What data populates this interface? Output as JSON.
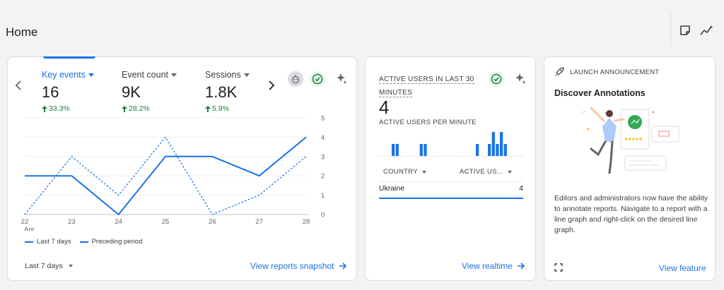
{
  "page": {
    "title": "Home"
  },
  "header_icons": [
    "note-icon",
    "insights-icon"
  ],
  "snapshot_card": {
    "metrics": [
      {
        "label": "Key events",
        "value": "16",
        "change": "33.3%",
        "active": true
      },
      {
        "label": "Event count",
        "value": "9K",
        "change": "28.2%",
        "active": false
      },
      {
        "label": "Sessions",
        "value": "1.8K",
        "change": "5.9%",
        "active": false
      }
    ],
    "legend": {
      "current": "Last 7 days",
      "previous": "Preceding period"
    },
    "date_range": "Last 7 days",
    "link": "View reports snapshot",
    "colors": {
      "accent": "#1a73e8",
      "positive": "#188038"
    }
  },
  "chart_data": {
    "type": "line",
    "x": [
      "22",
      "23",
      "24",
      "25",
      "26",
      "27",
      "28"
    ],
    "x_sublabel": "Apr",
    "series": [
      {
        "name": "Last 7 days",
        "values": [
          2,
          2,
          0,
          3,
          3,
          2,
          4
        ]
      },
      {
        "name": "Preceding period",
        "values": [
          0,
          3,
          1,
          4,
          0,
          1,
          3
        ]
      }
    ],
    "yticks": [
      "0",
      "1",
      "2",
      "3",
      "4",
      "5"
    ],
    "ylim": [
      0,
      5
    ],
    "y_axis_side": "right",
    "grid": true,
    "legend_position": "bottom-left"
  },
  "realtime_card": {
    "title": "ACTIVE USERS IN LAST 30 MINUTES",
    "value": "4",
    "subtitle": "ACTIVE USERS PER MINUTE",
    "bars": [
      0,
      0,
      0,
      1,
      1,
      0,
      0,
      0,
      0,
      0,
      1,
      1,
      0,
      0,
      0,
      0,
      0,
      0,
      0,
      0,
      0,
      0,
      0,
      0,
      1,
      0,
      0,
      1,
      2,
      1,
      2,
      1,
      0,
      0,
      0,
      0
    ],
    "columns": [
      "COUNTRY",
      "ACTIVE US..."
    ],
    "rows": [
      {
        "country": "Ukraine",
        "users": "4"
      }
    ],
    "link": "View realtime"
  },
  "announcement_card": {
    "kicker": "LAUNCH ANNOUNCEMENT",
    "title": "Discover Annotations",
    "body": "Editors and administrators now have the ability to annotate reports. Navigate to a report with a line graph and right-click on the desired line graph.",
    "link": "View feature"
  }
}
